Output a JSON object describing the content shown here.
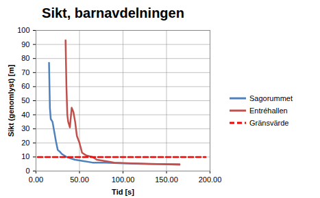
{
  "chart_data": {
    "type": "line",
    "title": "Sikt, barnavdelningen",
    "x_label": "Tid [s]",
    "y_label": "Sikt (genomlyst) [m]",
    "xlim": [
      0,
      200
    ],
    "ylim": [
      0,
      100
    ],
    "xticks": [
      {
        "value": 0,
        "label": "0.00"
      },
      {
        "value": 50,
        "label": "50.00"
      },
      {
        "value": 100,
        "label": "100.00"
      },
      {
        "value": 150,
        "label": "150.00"
      },
      {
        "value": 200,
        "label": "200.00"
      }
    ],
    "yticks": [
      0,
      10,
      20,
      30,
      40,
      50,
      60,
      70,
      80,
      90,
      100
    ],
    "grid": true,
    "legend": "right",
    "series": [
      {
        "name": "Sagorummet",
        "color": "#4f81bd",
        "line_style": "solid",
        "x": [
          15,
          16,
          17,
          19,
          21,
          23,
          25,
          27,
          30,
          35,
          40,
          45,
          55,
          65,
          80,
          100,
          130,
          165
        ],
        "values": [
          77,
          45,
          37,
          35,
          28,
          21,
          15,
          14,
          12,
          10,
          9,
          8,
          7,
          6,
          6,
          5.5,
          5,
          4.8
        ]
      },
      {
        "name": "Entréhallen",
        "color": "#c0504d",
        "line_style": "solid",
        "x": [
          34,
          35,
          36,
          37,
          39,
          41,
          43,
          45,
          47,
          50,
          53,
          58,
          65,
          70,
          80,
          90,
          110,
          140,
          165
        ],
        "values": [
          93,
          60,
          40,
          35,
          31,
          45,
          42,
          35,
          25,
          20,
          13,
          11,
          10,
          8,
          7,
          6,
          5.5,
          5,
          4.5
        ]
      },
      {
        "name": "Gränsvärde",
        "color": "#ff0000",
        "line_style": "dashed",
        "x": [
          2,
          195
        ],
        "values": [
          10,
          10
        ]
      }
    ]
  }
}
